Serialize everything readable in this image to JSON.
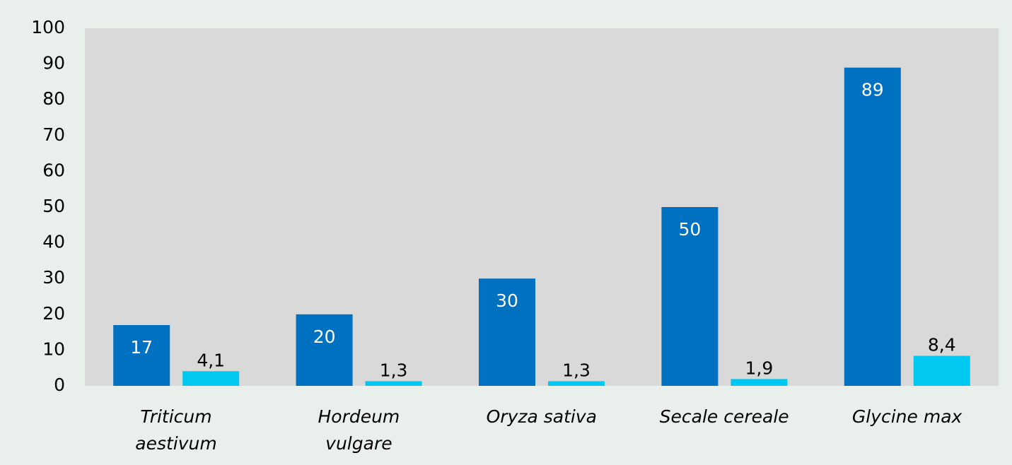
{
  "chart_data": {
    "type": "bar",
    "categories": [
      "Triticum\naestivum",
      "Hordeum\nvulgare",
      "Oryza sativa",
      "Secale cereale",
      "Glycine max"
    ],
    "series": [
      {
        "color": "#0070c0",
        "values": [
          17,
          20,
          30,
          50,
          89
        ]
      },
      {
        "color": "#00c8f0",
        "values": [
          4.1,
          1.3,
          1.3,
          1.9,
          8.4
        ],
        "value_labels": [
          "4,1",
          "1,3",
          "1,3",
          "1,9",
          "8,4"
        ]
      }
    ],
    "ylim": [
      0,
      100
    ],
    "yticks": [
      0,
      10,
      20,
      30,
      40,
      50,
      60,
      70,
      80,
      90,
      100
    ],
    "grid": false
  }
}
